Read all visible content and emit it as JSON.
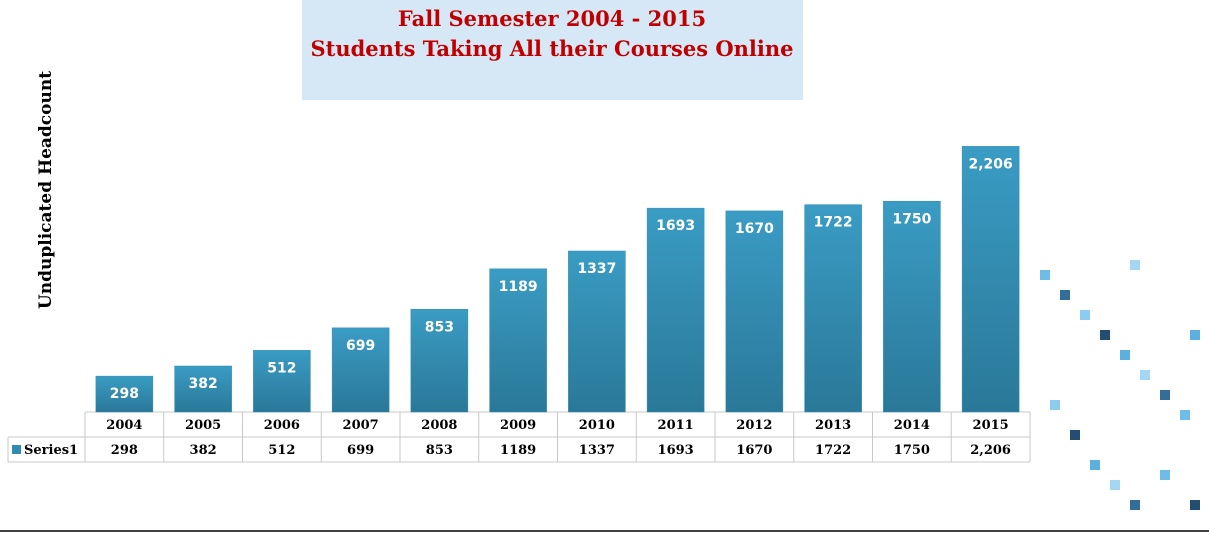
{
  "chart_data": {
    "type": "bar",
    "title": [
      "Fall Semester 2004 - 2015",
      "Students Taking All their Courses Online"
    ],
    "y_label": "Unduplicated Headcount",
    "categories": [
      "2004",
      "2005",
      "2006",
      "2007",
      "2008",
      "2009",
      "2010",
      "2011",
      "2012",
      "2013",
      "2014",
      "2015"
    ],
    "series": [
      {
        "name": "Series1",
        "color": "#2f8cb3",
        "values": [
          298,
          382,
          512,
          699,
          853,
          1189,
          1337,
          1693,
          1670,
          1722,
          1750,
          2206
        ],
        "value_labels": [
          "298",
          "382",
          "512",
          "699",
          "853",
          "1189",
          "1337",
          "1693",
          "1670",
          "1722",
          "1750",
          "2,206"
        ]
      }
    ],
    "ylim": [
      0,
      2400
    ]
  }
}
